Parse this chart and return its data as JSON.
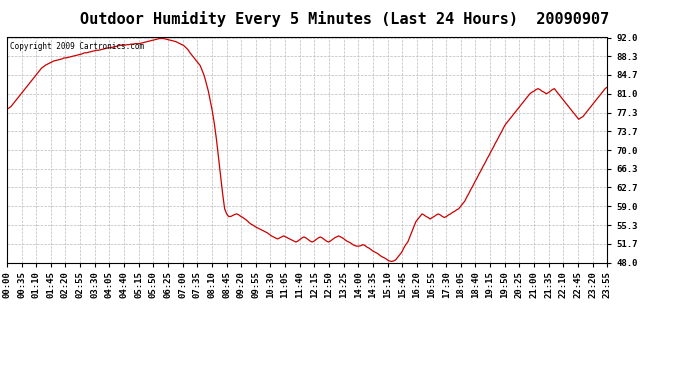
{
  "title": "Outdoor Humidity Every 5 Minutes (Last 24 Hours)  20090907",
  "copyright_text": "Copyright 2009 Cartronics.com",
  "line_color": "#cc0000",
  "background_color": "#ffffff",
  "grid_color": "#bbbbbb",
  "ylim": [
    48.0,
    92.0
  ],
  "yticks": [
    48.0,
    51.7,
    55.3,
    59.0,
    62.7,
    66.3,
    70.0,
    73.7,
    77.3,
    81.0,
    84.7,
    88.3,
    92.0
  ],
  "title_fontsize": 11,
  "tick_fontsize": 6.5,
  "x_tick_labels": [
    "00:00",
    "00:35",
    "01:10",
    "01:45",
    "02:20",
    "02:55",
    "03:30",
    "04:05",
    "04:40",
    "05:15",
    "05:50",
    "06:25",
    "07:00",
    "07:35",
    "08:10",
    "08:45",
    "09:20",
    "09:55",
    "10:30",
    "11:05",
    "11:40",
    "12:15",
    "12:50",
    "13:25",
    "14:00",
    "14:35",
    "15:10",
    "15:45",
    "16:20",
    "16:55",
    "17:30",
    "18:05",
    "18:40",
    "19:15",
    "19:50",
    "20:25",
    "21:00",
    "21:35",
    "22:10",
    "22:45",
    "23:20",
    "23:55"
  ],
  "humidity_values": [
    78.0,
    78.2,
    78.5,
    79.0,
    79.5,
    80.0,
    80.5,
    81.0,
    81.5,
    82.0,
    82.5,
    83.0,
    83.5,
    84.0,
    84.5,
    85.0,
    85.5,
    86.0,
    86.3,
    86.6,
    86.8,
    87.0,
    87.2,
    87.4,
    87.5,
    87.6,
    87.7,
    87.8,
    88.0,
    88.0,
    88.1,
    88.2,
    88.3,
    88.4,
    88.5,
    88.6,
    88.7,
    88.8,
    89.0,
    89.0,
    89.1,
    89.2,
    89.3,
    89.4,
    89.5,
    89.5,
    89.6,
    89.7,
    89.8,
    89.9,
    90.0,
    90.0,
    90.1,
    90.2,
    90.3,
    90.4,
    90.5,
    90.5,
    90.5,
    90.6,
    90.6,
    90.7,
    90.7,
    90.8,
    90.8,
    90.8,
    90.9,
    91.0,
    91.1,
    91.2,
    91.3,
    91.4,
    91.5,
    91.6,
    91.7,
    91.8,
    91.8,
    91.8,
    91.7,
    91.6,
    91.5,
    91.4,
    91.3,
    91.2,
    91.0,
    90.8,
    90.6,
    90.4,
    90.0,
    89.6,
    89.0,
    88.5,
    88.0,
    87.5,
    87.0,
    86.5,
    85.5,
    84.5,
    83.0,
    81.5,
    79.5,
    77.5,
    75.0,
    72.0,
    68.5,
    65.0,
    61.5,
    58.5,
    57.5,
    57.0,
    57.0,
    57.2,
    57.4,
    57.5,
    57.3,
    57.0,
    56.8,
    56.5,
    56.2,
    55.8,
    55.5,
    55.3,
    55.0,
    54.8,
    54.6,
    54.4,
    54.2,
    54.0,
    53.8,
    53.5,
    53.2,
    53.0,
    52.8,
    52.6,
    52.8,
    53.0,
    53.2,
    53.0,
    52.8,
    52.6,
    52.4,
    52.2,
    52.0,
    52.2,
    52.5,
    52.8,
    53.0,
    52.8,
    52.5,
    52.2,
    52.0,
    52.2,
    52.5,
    52.8,
    53.0,
    52.8,
    52.5,
    52.2,
    52.0,
    52.2,
    52.5,
    52.8,
    53.0,
    53.2,
    53.0,
    52.8,
    52.5,
    52.2,
    52.0,
    51.8,
    51.5,
    51.3,
    51.2,
    51.2,
    51.3,
    51.5,
    51.3,
    51.0,
    50.8,
    50.5,
    50.2,
    50.0,
    49.8,
    49.5,
    49.2,
    49.0,
    48.8,
    48.5,
    48.3,
    48.2,
    48.3,
    48.5,
    49.0,
    49.5,
    50.0,
    50.8,
    51.5,
    52.0,
    53.0,
    54.0,
    55.0,
    56.0,
    56.5,
    57.0,
    57.5,
    57.3,
    57.0,
    56.8,
    56.5,
    56.8,
    57.0,
    57.3,
    57.5,
    57.3,
    57.0,
    56.8,
    57.0,
    57.3,
    57.5,
    57.8,
    58.0,
    58.3,
    58.5,
    59.0,
    59.5,
    60.0,
    60.8,
    61.5,
    62.3,
    63.0,
    63.8,
    64.5,
    65.3,
    66.0,
    66.8,
    67.5,
    68.3,
    69.0,
    69.8,
    70.5,
    71.3,
    72.0,
    72.8,
    73.5,
    74.3,
    75.0,
    75.5,
    76.0,
    76.5,
    77.0,
    77.5,
    78.0,
    78.5,
    79.0,
    79.5,
    80.0,
    80.5,
    81.0,
    81.3,
    81.5,
    81.8,
    82.0,
    81.8,
    81.5,
    81.3,
    81.0,
    81.2,
    81.5,
    81.8,
    82.0,
    81.5,
    81.0,
    80.5,
    80.0,
    79.5,
    79.0,
    78.5,
    78.0,
    77.5,
    77.0,
    76.5,
    76.0,
    76.3,
    76.5,
    77.0,
    77.5,
    78.0,
    78.5,
    79.0,
    79.5,
    80.0,
    80.5,
    81.0,
    81.5,
    82.0,
    82.3
  ]
}
